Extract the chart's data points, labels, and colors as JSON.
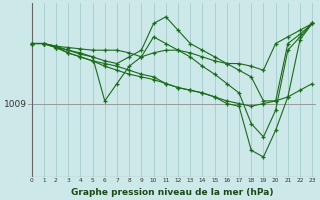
{
  "title": "Graphe pression niveau de la mer (hPa)",
  "bg_color": "#cce8e8",
  "grid_color": "#aad0d0",
  "line_color": "#1a6b1a",
  "marker_color": "#1a6b1a",
  "ylabel_value": 1009,
  "x_values": [
    0,
    1,
    2,
    3,
    4,
    5,
    6,
    7,
    8,
    9,
    10,
    11,
    12,
    13,
    14,
    15,
    16,
    17,
    18,
    19,
    20,
    21,
    22,
    23
  ],
  "series": [
    [
      1013.5,
      1013.5,
      1013.3,
      1013.2,
      1013.1,
      1013.0,
      1013.0,
      1013.0,
      1012.8,
      1012.5,
      1012.8,
      1013.0,
      1013.0,
      1012.8,
      1012.5,
      1012.2,
      1012.0,
      1012.0,
      1011.8,
      1011.5,
      1013.5,
      1014.0,
      1014.5,
      1015.0
    ],
    [
      1013.5,
      1013.5,
      1013.3,
      1013.0,
      1012.8,
      1012.5,
      1012.2,
      1012.0,
      1012.5,
      1013.0,
      1015.0,
      1015.5,
      1014.5,
      1013.5,
      1013.0,
      1012.5,
      1012.0,
      1011.5,
      1011.0,
      1009.2,
      1009.2,
      1013.5,
      1014.2,
      1015.0
    ],
    [
      1013.5,
      1013.5,
      1013.2,
      1013.0,
      1012.7,
      1012.5,
      1009.2,
      1010.5,
      1011.8,
      1012.5,
      1014.0,
      1013.5,
      1013.0,
      1012.5,
      1011.8,
      1011.2,
      1010.5,
      1009.8,
      1007.5,
      1006.5,
      1008.5,
      1013.0,
      1014.0,
      1015.0
    ],
    [
      1013.5,
      1013.5,
      1013.2,
      1012.8,
      1012.5,
      1012.2,
      1012.0,
      1011.8,
      1011.5,
      1011.2,
      1011.0,
      1010.5,
      1010.2,
      1010.0,
      1009.8,
      1009.5,
      1009.0,
      1008.8,
      1005.5,
      1005.0,
      1007.0,
      1009.5,
      1013.8,
      1015.0
    ],
    [
      1013.5,
      1013.5,
      1013.2,
      1012.8,
      1012.5,
      1012.2,
      1011.8,
      1011.5,
      1011.2,
      1011.0,
      1010.8,
      1010.5,
      1010.2,
      1010.0,
      1009.8,
      1009.5,
      1009.2,
      1009.0,
      1008.8,
      1009.0,
      1009.2,
      1009.5,
      1010.0,
      1010.5
    ]
  ],
  "xlim": [
    -0.3,
    23.3
  ],
  "ylim_bottom": 1003.5,
  "ylim_top": 1016.5
}
